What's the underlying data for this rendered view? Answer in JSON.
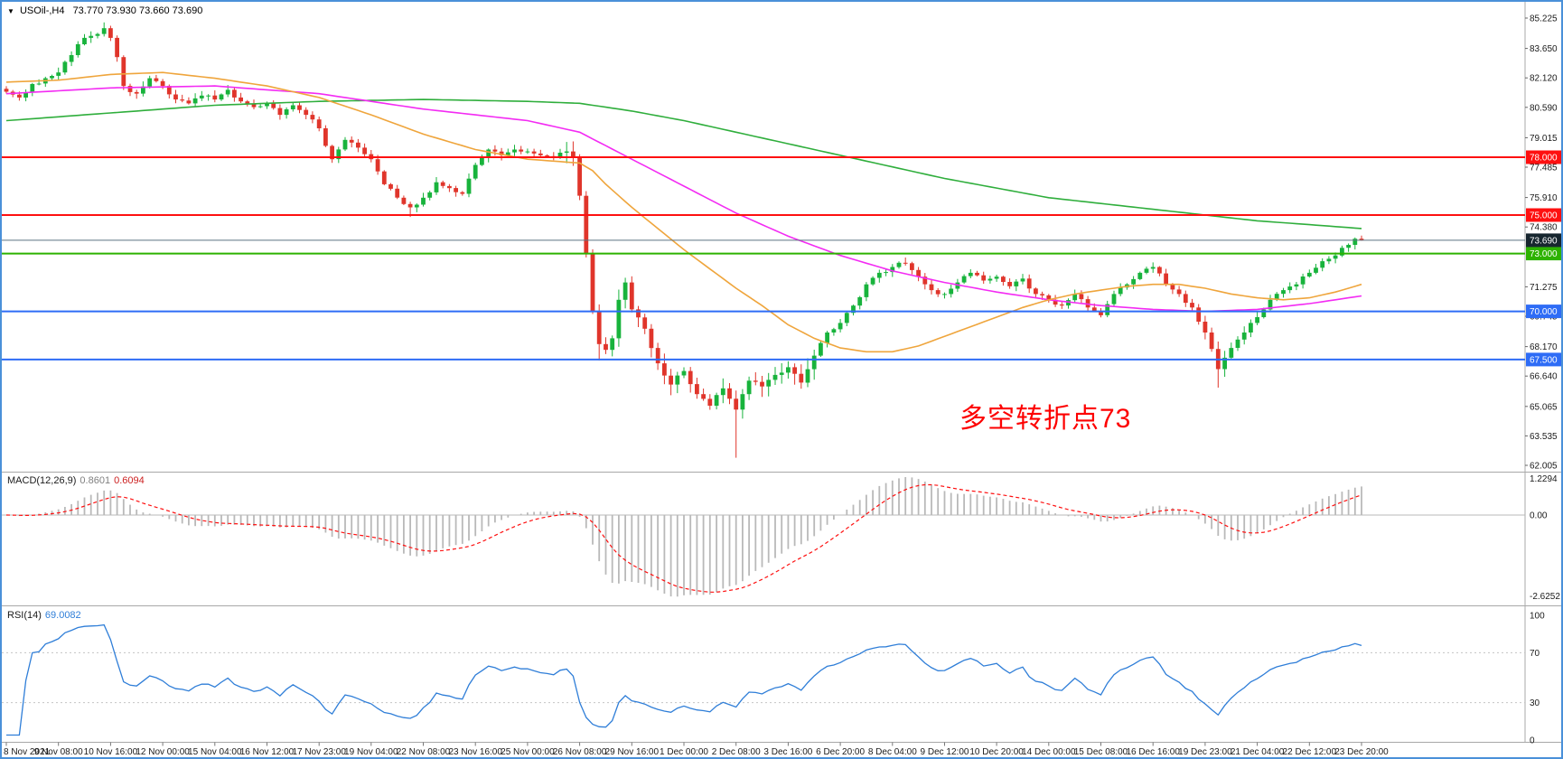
{
  "window": {
    "border_color": "#4a90d9",
    "header": {
      "symbol": "USOil-,H4",
      "ohlc": "73.770 73.930 73.660 73.690"
    }
  },
  "chart_data": [
    {
      "type": "candlestick",
      "title": "USOil- H4 price chart",
      "bars_total": 209,
      "x_axis": {
        "bars_per_label": 8,
        "labels": [
          "8 Nov 2021",
          "9 Nov 08:00",
          "10 Nov 16:00",
          "12 Nov 00:00",
          "15 Nov 04:00",
          "16 Nov 12:00",
          "17 Nov 23:00",
          "19 Nov 04:00",
          "22 Nov 08:00",
          "23 Nov 16:00",
          "25 Nov 00:00",
          "26 Nov 08:00",
          "29 Nov 16:00",
          "1 Dec 00:00",
          "2 Dec 08:00",
          "3 Dec 16:00",
          "6 Dec 20:00",
          "8 Dec 04:00",
          "9 Dec 12:00",
          "10 Dec 20:00",
          "14 Dec 00:00",
          "15 Dec 08:00",
          "16 Dec 16:00",
          "19 Dec 23:00",
          "21 Dec 04:00",
          "22 Dec 12:00",
          "23 Dec 20:00"
        ]
      },
      "y_axis": {
        "min": 62.005,
        "max": 85.225,
        "labels": [
          "85.225",
          "83.650",
          "82.120",
          "80.590",
          "79.015",
          "77.485",
          "75.910",
          "74.380",
          "71.275",
          "69.745",
          "68.170",
          "66.640",
          "65.065",
          "63.535",
          "62.005"
        ]
      },
      "close_path": [
        [
          0,
          81.4
        ],
        [
          2,
          81.1
        ],
        [
          4,
          81.8
        ],
        [
          6,
          82.1
        ],
        [
          8,
          82.4
        ],
        [
          10,
          83.3
        ],
        [
          12,
          84.2
        ],
        [
          14,
          84.4
        ],
        [
          15,
          84.7
        ],
        [
          16,
          84.2
        ],
        [
          17,
          83.2
        ],
        [
          18,
          81.7
        ],
        [
          20,
          81.3
        ],
        [
          22,
          82.1
        ],
        [
          24,
          81.7
        ],
        [
          26,
          81.0
        ],
        [
          28,
          80.8
        ],
        [
          30,
          81.2
        ],
        [
          32,
          81.0
        ],
        [
          34,
          81.5
        ],
        [
          36,
          80.9
        ],
        [
          38,
          80.6
        ],
        [
          40,
          80.8
        ],
        [
          42,
          80.2
        ],
        [
          44,
          80.7
        ],
        [
          46,
          80.2
        ],
        [
          48,
          79.5
        ],
        [
          50,
          77.9
        ],
        [
          52,
          78.9
        ],
        [
          54,
          78.5
        ],
        [
          56,
          77.9
        ],
        [
          58,
          76.6
        ],
        [
          60,
          75.9
        ],
        [
          62,
          75.4
        ],
        [
          64,
          75.9
        ],
        [
          66,
          76.7
        ],
        [
          68,
          76.4
        ],
        [
          70,
          76.1
        ],
        [
          72,
          77.6
        ],
        [
          74,
          78.4
        ],
        [
          76,
          78.1
        ],
        [
          78,
          78.4
        ],
        [
          80,
          78.3
        ],
        [
          82,
          78.1
        ],
        [
          84,
          78.0
        ],
        [
          86,
          78.3
        ],
        [
          87,
          78.0
        ],
        [
          88,
          76.0
        ],
        [
          89,
          73.0
        ],
        [
          90,
          70.0
        ],
        [
          91,
          68.3
        ],
        [
          92,
          68.0
        ],
        [
          93,
          68.6
        ],
        [
          94,
          70.6
        ],
        [
          95,
          71.5
        ],
        [
          96,
          70.1
        ],
        [
          98,
          69.1
        ],
        [
          100,
          67.3
        ],
        [
          102,
          66.2
        ],
        [
          104,
          66.9
        ],
        [
          106,
          65.7
        ],
        [
          108,
          65.1
        ],
        [
          110,
          66.0
        ],
        [
          112,
          64.9
        ],
        [
          113,
          65.7
        ],
        [
          114,
          66.4
        ],
        [
          116,
          66.1
        ],
        [
          118,
          66.7
        ],
        [
          120,
          67.1
        ],
        [
          122,
          66.3
        ],
        [
          124,
          67.7
        ],
        [
          126,
          68.9
        ],
        [
          128,
          69.4
        ],
        [
          130,
          70.3
        ],
        [
          132,
          71.4
        ],
        [
          134,
          72.0
        ],
        [
          136,
          72.3
        ],
        [
          138,
          72.5
        ],
        [
          140,
          71.8
        ],
        [
          142,
          71.1
        ],
        [
          144,
          70.9
        ],
        [
          146,
          71.5
        ],
        [
          148,
          72.0
        ],
        [
          150,
          71.6
        ],
        [
          152,
          71.8
        ],
        [
          154,
          71.3
        ],
        [
          156,
          71.7
        ],
        [
          158,
          70.9
        ],
        [
          160,
          70.6
        ],
        [
          162,
          70.3
        ],
        [
          164,
          70.9
        ],
        [
          166,
          70.2
        ],
        [
          168,
          69.8
        ],
        [
          170,
          70.9
        ],
        [
          172,
          71.4
        ],
        [
          174,
          72.0
        ],
        [
          176,
          72.3
        ],
        [
          178,
          71.4
        ],
        [
          180,
          70.9
        ],
        [
          182,
          70.2
        ],
        [
          184,
          68.9
        ],
        [
          186,
          67.0
        ],
        [
          188,
          68.1
        ],
        [
          190,
          68.9
        ],
        [
          192,
          69.7
        ],
        [
          194,
          70.6
        ],
        [
          196,
          71.1
        ],
        [
          198,
          71.4
        ],
        [
          200,
          72.0
        ],
        [
          202,
          72.6
        ],
        [
          204,
          72.9
        ],
        [
          206,
          73.45
        ],
        [
          207,
          73.77
        ],
        [
          208,
          73.69
        ]
      ],
      "wick_spikes": [
        {
          "i": 15,
          "high": 85.0
        },
        {
          "i": 62,
          "low": 74.9
        },
        {
          "i": 91,
          "low": 67.45
        },
        {
          "i": 112,
          "low": 62.4
        },
        {
          "i": 186,
          "low": 66.04
        }
      ],
      "last_candle": {
        "open": 73.77,
        "high": 73.93,
        "low": 73.66,
        "close": 73.69
      },
      "colors": {
        "bull": "#18b33c",
        "bear": "#e0352b"
      },
      "moving_averages": [
        {
          "name": "slow-green",
          "color": "#2fae3c",
          "points": [
            [
              0,
              79.9
            ],
            [
              16,
              80.3
            ],
            [
              32,
              80.7
            ],
            [
              48,
              80.9
            ],
            [
              64,
              81.0
            ],
            [
              80,
              80.9
            ],
            [
              88,
              80.8
            ],
            [
              96,
              80.4
            ],
            [
              104,
              79.9
            ],
            [
              112,
              79.3
            ],
            [
              120,
              78.7
            ],
            [
              128,
              78.1
            ],
            [
              136,
              77.5
            ],
            [
              144,
              76.9
            ],
            [
              152,
              76.4
            ],
            [
              160,
              75.9
            ],
            [
              168,
              75.6
            ],
            [
              176,
              75.3
            ],
            [
              184,
              75.0
            ],
            [
              192,
              74.7
            ],
            [
              200,
              74.5
            ],
            [
              208,
              74.3
            ]
          ]
        },
        {
          "name": "mid-magenta",
          "color": "#f32bf3",
          "points": [
            [
              0,
              81.3
            ],
            [
              16,
              81.6
            ],
            [
              32,
              81.7
            ],
            [
              48,
              81.3
            ],
            [
              56,
              80.9
            ],
            [
              64,
              80.5
            ],
            [
              72,
              80.2
            ],
            [
              80,
              79.9
            ],
            [
              88,
              79.3
            ],
            [
              92,
              78.6
            ],
            [
              96,
              77.9
            ],
            [
              104,
              76.5
            ],
            [
              112,
              75.1
            ],
            [
              120,
              73.9
            ],
            [
              128,
              72.9
            ],
            [
              136,
              72.1
            ],
            [
              144,
              71.5
            ],
            [
              152,
              71.0
            ],
            [
              160,
              70.6
            ],
            [
              168,
              70.3
            ],
            [
              176,
              70.1
            ],
            [
              184,
              70.0
            ],
            [
              192,
              70.1
            ],
            [
              200,
              70.4
            ],
            [
              208,
              70.8
            ]
          ]
        },
        {
          "name": "fast-orange",
          "color": "#efa53c",
          "points": [
            [
              0,
              81.9
            ],
            [
              8,
              82.0
            ],
            [
              16,
              82.3
            ],
            [
              24,
              82.4
            ],
            [
              32,
              82.1
            ],
            [
              40,
              81.7
            ],
            [
              48,
              81.1
            ],
            [
              56,
              80.2
            ],
            [
              64,
              79.2
            ],
            [
              72,
              78.4
            ],
            [
              80,
              77.9
            ],
            [
              88,
              77.7
            ],
            [
              90,
              77.3
            ],
            [
              92,
              76.6
            ],
            [
              96,
              75.4
            ],
            [
              100,
              74.3
            ],
            [
              104,
              73.2
            ],
            [
              108,
              72.2
            ],
            [
              112,
              71.2
            ],
            [
              116,
              70.3
            ],
            [
              120,
              69.3
            ],
            [
              124,
              68.6
            ],
            [
              128,
              68.1
            ],
            [
              132,
              67.9
            ],
            [
              136,
              67.9
            ],
            [
              140,
              68.2
            ],
            [
              144,
              68.7
            ],
            [
              148,
              69.2
            ],
            [
              152,
              69.7
            ],
            [
              156,
              70.2
            ],
            [
              160,
              70.6
            ],
            [
              164,
              70.9
            ],
            [
              168,
              71.1
            ],
            [
              172,
              71.3
            ],
            [
              176,
              71.4
            ],
            [
              180,
              71.4
            ],
            [
              184,
              71.2
            ],
            [
              188,
              70.9
            ],
            [
              192,
              70.7
            ],
            [
              196,
              70.6
            ],
            [
              200,
              70.7
            ],
            [
              204,
              71.0
            ],
            [
              208,
              71.4
            ]
          ]
        }
      ],
      "hlines": [
        {
          "price": 78.0,
          "label": "78.000",
          "color": "#fe1010"
        },
        {
          "price": 75.0,
          "label": "75.000",
          "color": "#fe1010"
        },
        {
          "price": 73.0,
          "label": "73.000",
          "color": "#2db200"
        },
        {
          "price": 70.0,
          "label": "70.000",
          "color": "#2e6cf6"
        },
        {
          "price": 67.5,
          "label": "67.500",
          "color": "#2e6cf6"
        }
      ],
      "current_price": {
        "value": 73.69,
        "label": "73.690",
        "badge_bg": "#17262f"
      },
      "annotation": {
        "text": "多空转折点73",
        "color": "#fd0000"
      }
    },
    {
      "type": "bar",
      "name": "MACD",
      "label": "MACD(12,26,9)",
      "values_label": [
        "0.8601",
        "0.6094"
      ],
      "params": {
        "fast": 12,
        "slow": 26,
        "signal": 9
      },
      "y_axis_labels": [
        "1.2294",
        "0.00",
        "-2.6252"
      ],
      "histogram_color": "#b9b9b9",
      "signal_color": "#fe1010"
    },
    {
      "type": "line",
      "name": "RSI",
      "label": "RSI(14)",
      "value_label": "69.0082",
      "period": 14,
      "levels": [
        70,
        30
      ],
      "y_axis_labels": [
        "100",
        "70",
        "30",
        "0"
      ],
      "line_color": "#2f7ed8"
    }
  ]
}
